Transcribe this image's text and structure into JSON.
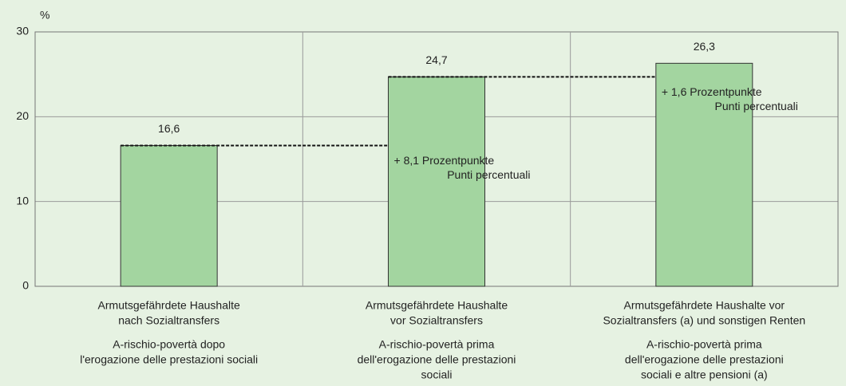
{
  "chart_data": {
    "type": "bar",
    "y_unit": "%",
    "categories": [
      [
        "Armutsgefährdete Haushalte",
        "nach Sozialtransfers"
      ],
      [
        "Armutsgefährdete Haushalte",
        "vor Sozialtransfers"
      ],
      [
        "Armutsgefährdete Haushalte vor",
        "Sozialtransfers (a) und sonstigen Renten"
      ]
    ],
    "categories_it": [
      [
        "A-rischio-povertà dopo",
        "l'erogazione delle prestazioni sociali"
      ],
      [
        "A-rischio-povertà prima",
        "dell'erogazione delle prestazioni",
        "sociali"
      ],
      [
        "A-rischio-povertà prima",
        "dell'erogazione delle prestazioni",
        "sociali e altre pensioni (a)"
      ]
    ],
    "values": [
      16.6,
      24.7,
      26.3
    ],
    "value_labels": [
      "16,6",
      "24,7",
      "26,3"
    ],
    "color": "#a3d5a0",
    "ylim": [
      0,
      30
    ],
    "yticks": [
      0,
      10,
      20,
      30
    ],
    "grid": true,
    "annotations": [
      [
        "+ 8,1 Prozentpunkte",
        "Punti percentuali"
      ],
      [
        "+ 1,6 Prozentpunkte",
        "Punti percentuali"
      ]
    ]
  }
}
